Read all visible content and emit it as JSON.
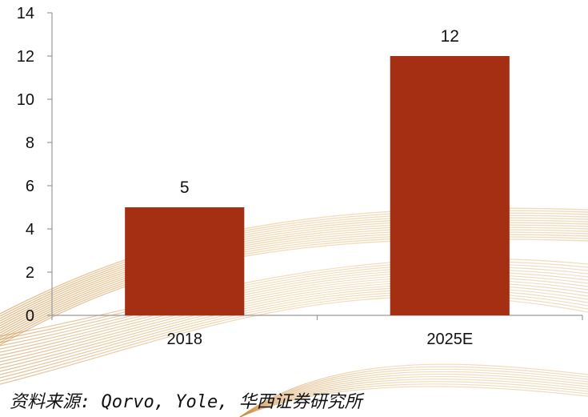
{
  "chart_data": {
    "type": "bar",
    "categories": [
      "2018",
      "2025E"
    ],
    "values": [
      5,
      12
    ],
    "data_labels": [
      "5",
      "12"
    ],
    "ylim": [
      0,
      14
    ],
    "yticks": [
      0,
      2,
      4,
      6,
      8,
      10,
      12,
      14
    ],
    "title": "",
    "xlabel": "",
    "ylabel": "",
    "grid": false,
    "bar_color": "#A52F12"
  },
  "source": "资料来源: Qorvo, Yole, 华西证券研究所"
}
